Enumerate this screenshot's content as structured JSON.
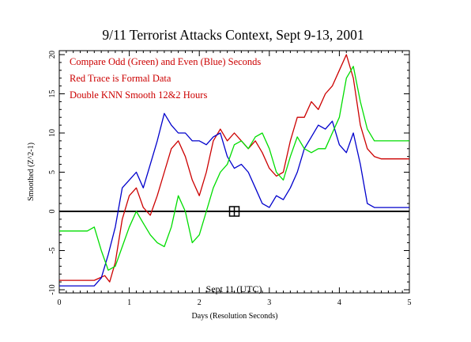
{
  "chart_data": {
    "type": "line",
    "title": "9/11 Terrorist Attacks Context, Sept 9-13, 2001",
    "xlabel": "Days (Resolution Seconds)",
    "ylabel": "Smoothed (Z^2-1)",
    "xlim": [
      0,
      5
    ],
    "ylim": [
      -10,
      21
    ],
    "x_ticks": [
      "0",
      "1",
      "2",
      "3",
      "4",
      "5"
    ],
    "y_ticks": [
      "-10",
      "-5",
      "0",
      "5",
      "10",
      "15",
      "20"
    ],
    "grid": false,
    "annotations": [
      {
        "text": "Compare Odd (Green) and Even (Blue) Seconds",
        "color": "#cc0000"
      },
      {
        "text": "Red Trace is Formal Data",
        "color": "#cc0000"
      },
      {
        "text": "Double KNN Smooth 12&2 Hours",
        "color": "#cc0000"
      }
    ],
    "event_marker": {
      "label": "Sept 11 (UTC)",
      "x": 2.5,
      "y": 0
    },
    "series": [
      {
        "color": "#cc0000",
        "x": [
          0,
          0.5,
          0.65,
          0.72,
          0.8,
          0.9,
          1.0,
          1.1,
          1.2,
          1.3,
          1.4,
          1.5,
          1.6,
          1.7,
          1.8,
          1.9,
          2.0,
          2.1,
          2.2,
          2.3,
          2.4,
          2.5,
          2.6,
          2.7,
          2.8,
          2.9,
          3.0,
          3.1,
          3.2,
          3.3,
          3.4,
          3.5,
          3.6,
          3.7,
          3.8,
          3.9,
          4.0,
          4.1,
          4.2,
          4.3,
          4.4,
          4.5,
          4.6,
          4.7,
          5.0
        ],
        "y": [
          -8.8,
          -8.8,
          -8.2,
          -9,
          -6.5,
          -1,
          2,
          3,
          0.5,
          -0.5,
          2,
          5,
          8,
          9,
          7,
          4,
          2,
          5,
          9,
          10.5,
          9,
          10,
          9,
          8,
          9,
          7.5,
          5.5,
          4.5,
          5,
          9,
          12,
          12,
          14,
          13,
          15,
          16,
          18,
          20,
          17,
          11,
          8,
          7,
          6.7,
          6.7,
          6.7
        ]
      },
      {
        "color": "#0000cc",
        "x": [
          0,
          0.5,
          0.6,
          0.7,
          0.8,
          0.9,
          1.0,
          1.1,
          1.2,
          1.3,
          1.4,
          1.5,
          1.6,
          1.7,
          1.8,
          1.9,
          2.0,
          2.1,
          2.2,
          2.3,
          2.4,
          2.5,
          2.6,
          2.7,
          2.8,
          2.9,
          3.0,
          3.1,
          3.2,
          3.3,
          3.4,
          3.5,
          3.6,
          3.7,
          3.8,
          3.9,
          4.0,
          4.1,
          4.2,
          4.3,
          4.4,
          4.5,
          4.6,
          5.0
        ],
        "y": [
          -9.5,
          -9.5,
          -8.5,
          -5.5,
          -2,
          3,
          4,
          5,
          3,
          6,
          9,
          12.5,
          11,
          10,
          10,
          9,
          9,
          8.5,
          9.5,
          10,
          7,
          5.5,
          6,
          5,
          3,
          1,
          0.5,
          2,
          1.5,
          3,
          5,
          8,
          9.5,
          11,
          10.5,
          11.5,
          8.5,
          7.5,
          10,
          6,
          1,
          0.5,
          0.5,
          0.5
        ]
      },
      {
        "color": "#00dd00",
        "x": [
          0,
          0.4,
          0.5,
          0.6,
          0.7,
          0.8,
          0.9,
          1.0,
          1.1,
          1.2,
          1.3,
          1.4,
          1.5,
          1.6,
          1.7,
          1.8,
          1.9,
          2.0,
          2.1,
          2.2,
          2.3,
          2.4,
          2.5,
          2.6,
          2.7,
          2.8,
          2.9,
          3.0,
          3.1,
          3.2,
          3.3,
          3.4,
          3.5,
          3.6,
          3.7,
          3.8,
          3.9,
          4.0,
          4.1,
          4.2,
          4.3,
          4.4,
          4.5,
          4.6,
          5.0
        ],
        "y": [
          -2.5,
          -2.5,
          -2,
          -5,
          -7.5,
          -7,
          -4.5,
          -2,
          0,
          -1.5,
          -3,
          -4,
          -4.5,
          -2,
          2,
          0,
          -4,
          -3,
          0,
          3,
          5,
          6,
          8.5,
          9,
          8,
          9.5,
          10,
          8,
          5,
          4,
          7,
          9.5,
          8,
          7.5,
          8,
          8,
          10,
          12,
          17,
          18.5,
          14,
          10.5,
          9,
          9,
          9
        ]
      }
    ]
  }
}
